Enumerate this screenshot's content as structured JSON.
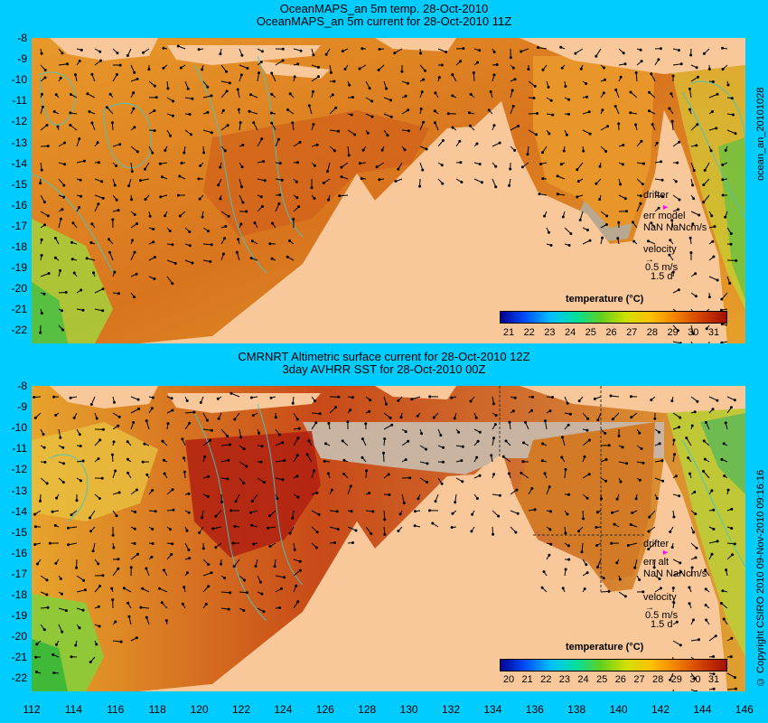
{
  "panel_top": {
    "title_line1": "OceanMAPS_an 5m temp. 28-Oct-2010",
    "title_line2": "OceanMAPS_an 5m current for 28-Oct-2010 11Z",
    "side_label": "ocean_an_20101028",
    "legend": {
      "drifter": "drifter",
      "err": "err model",
      "err_value": "NaN NaNcm/s",
      "velocity": "velocity",
      "velocity_scale": "0.5 m/s",
      "velocity_time": "1.5 d"
    },
    "colorbar": {
      "title": "temperature (°C)",
      "labels": [
        "21",
        "22",
        "23",
        "24",
        "25",
        "26",
        "27",
        "28",
        "29",
        "30",
        "31"
      ]
    }
  },
  "panel_bottom": {
    "title_line1": "CMRNRT Altimetric surface current for 28-Oct-2010 12Z",
    "title_line2": "3day AVHRR SST for 28-Oct-2010 00Z",
    "side_label": "© Copyright CSIRO 2010   09-Nov-2010 09:16:16",
    "legend": {
      "drifter": "drifter",
      "err": "err alt",
      "err_value": "NaN NaNcm/s",
      "velocity": "velocity",
      "velocity_scale": "0.5 m/s",
      "velocity_time": "1.5 d"
    },
    "colorbar": {
      "title": "temperature (°C)",
      "labels": [
        "20",
        "21",
        "22",
        "23",
        "24",
        "25",
        "26",
        "27",
        "28",
        "29",
        "30",
        "31"
      ]
    }
  },
  "axes": {
    "lat_ticks": [
      "-8",
      "-9",
      "-10",
      "-11",
      "-12",
      "-13",
      "-14",
      "-15",
      "-16",
      "-17",
      "-18",
      "-19",
      "-20",
      "-21",
      "-22"
    ],
    "lon_ticks": [
      "112",
      "114",
      "116",
      "118",
      "120",
      "122",
      "124",
      "126",
      "128",
      "130",
      "132",
      "134",
      "136",
      "138",
      "140",
      "142",
      "144",
      "146"
    ]
  },
  "colors": {
    "background": "#00ccff",
    "land": "#f9c89a",
    "sea_warm": "#d2601a",
    "sea_mid": "#f0a020",
    "sea_cool": "#c8d020",
    "no_data": "#c8b4a0"
  }
}
